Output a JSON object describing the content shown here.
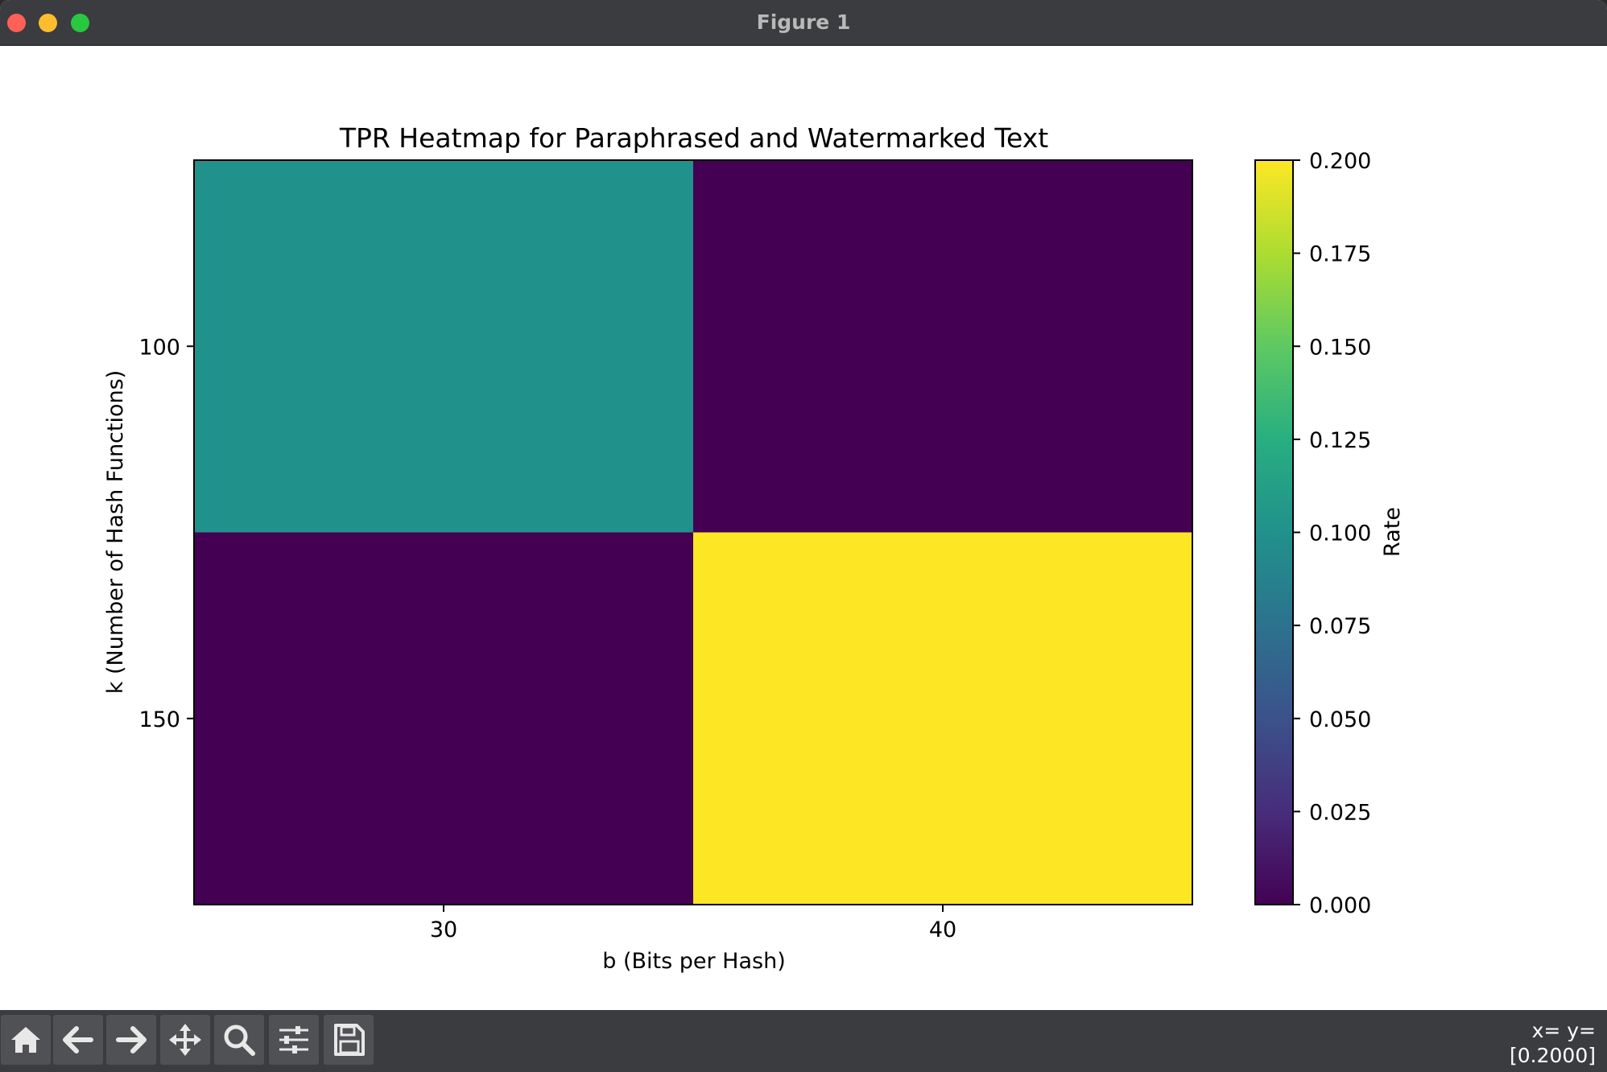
{
  "window": {
    "title": "Figure 1"
  },
  "toolbar": {
    "buttons": [
      {
        "name": "home-button",
        "icon": "home-icon"
      },
      {
        "name": "back-button",
        "icon": "arrow-left-icon"
      },
      {
        "name": "forward-button",
        "icon": "arrow-right-icon"
      },
      {
        "name": "pan-button",
        "icon": "move-icon"
      },
      {
        "name": "zoom-button",
        "icon": "search-icon"
      },
      {
        "name": "configure-subplots-button",
        "icon": "sliders-icon"
      },
      {
        "name": "save-button",
        "icon": "save-icon"
      }
    ],
    "coords_line1": "x= y=",
    "coords_line2": "[0.2000]"
  },
  "chart_data": {
    "type": "heatmap",
    "title": "TPR Heatmap for Paraphrased and Watermarked Text",
    "xlabel": "b (Bits per Hash)",
    "ylabel": "k (Number of Hash Functions)",
    "x_categories": [
      "30",
      "40"
    ],
    "y_categories": [
      "100",
      "150"
    ],
    "values": [
      [
        0.1,
        0.0
      ],
      [
        0.0,
        0.2
      ]
    ],
    "colormap": "viridis",
    "vmin": 0.0,
    "vmax": 0.2,
    "colorbar": {
      "label": "Rate",
      "ticks": [
        "0.000",
        "0.025",
        "0.050",
        "0.075",
        "0.100",
        "0.125",
        "0.150",
        "0.175",
        "0.200"
      ]
    }
  }
}
